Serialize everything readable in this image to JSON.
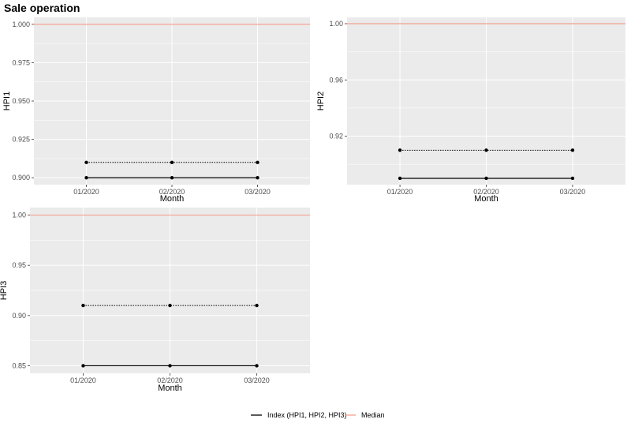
{
  "title": "Sale operation",
  "colors": {
    "panel_background": "#ebebeb",
    "grid": "#ffffff",
    "index_line": "#000000",
    "median_line": "#f4a08f"
  },
  "legend": {
    "position": "bottom",
    "items": [
      {
        "label": "Index (HPI1, HPI2, HPI3)",
        "color": "#000000"
      },
      {
        "label": "Median",
        "color": "#f4a08f"
      }
    ]
  },
  "chart_data": [
    {
      "type": "line",
      "xlabel": "Month",
      "ylabel": "HPI1",
      "categories": [
        "01/2020",
        "02/2020",
        "03/2020"
      ],
      "ylim": [
        0.8955,
        1.0045
      ],
      "yticks": [
        "0.900",
        "0.925",
        "0.950",
        "0.975",
        "1.000"
      ],
      "grid": true,
      "median": 1.0,
      "series": [
        {
          "style": "solid",
          "values": [
            0.9,
            0.9,
            0.9
          ]
        },
        {
          "style": "dotted",
          "values": [
            0.91,
            0.91,
            0.91
          ]
        }
      ]
    },
    {
      "type": "line",
      "xlabel": "Month",
      "ylabel": "HPI2",
      "categories": [
        "01/2020",
        "02/2020",
        "03/2020"
      ],
      "ylim": [
        0.8855,
        1.0045
      ],
      "yticks": [
        "0.92",
        "0.96",
        "1.00"
      ],
      "grid": true,
      "median": 1.0,
      "series": [
        {
          "style": "solid",
          "values": [
            0.89,
            0.89,
            0.89
          ]
        },
        {
          "style": "dotted",
          "values": [
            0.91,
            0.91,
            0.91
          ]
        }
      ]
    },
    {
      "type": "line",
      "xlabel": "Month",
      "ylabel": "HPI3",
      "categories": [
        "01/2020",
        "02/2020",
        "03/2020"
      ],
      "ylim": [
        0.8425,
        1.0075
      ],
      "yticks": [
        "0.85",
        "0.90",
        "0.95",
        "1.00"
      ],
      "grid": true,
      "median": 1.0,
      "series": [
        {
          "style": "solid",
          "values": [
            0.85,
            0.85,
            0.85
          ]
        },
        {
          "style": "dotted",
          "values": [
            0.91,
            0.91,
            0.91
          ]
        }
      ]
    }
  ]
}
